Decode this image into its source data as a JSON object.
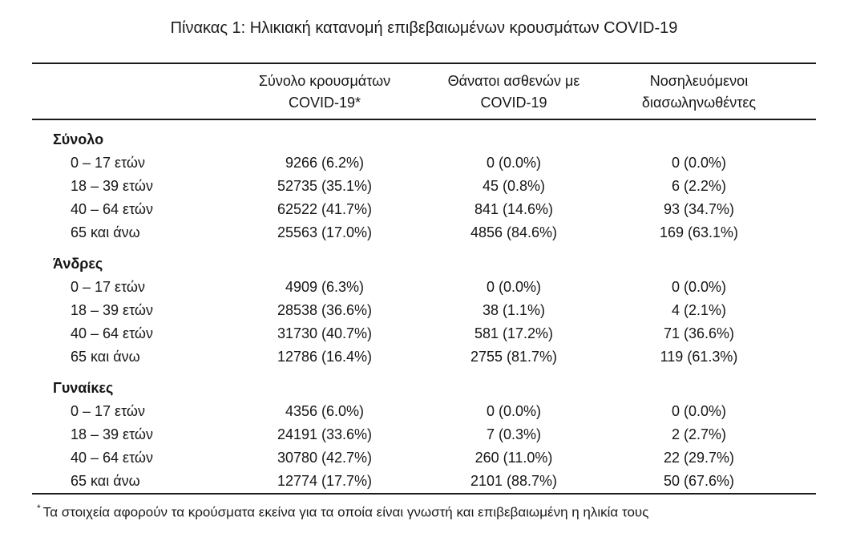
{
  "title": "Πίνακας 1: Ηλικιακή κατανομή επιβεβαιωμένων κρουσμάτων COVID-19",
  "table": {
    "columns": [
      {
        "line1": "Σύνολο κρουσμάτων",
        "line2": "COVID-19*"
      },
      {
        "line1": "Θάνατοι ασθενών με",
        "line2": "COVID-19"
      },
      {
        "line1": "Νοσηλευόμενοι",
        "line2": "διασωληνωθέντες"
      }
    ],
    "sections": [
      {
        "label": "Σύνολο",
        "rows": [
          {
            "label": "0 – 17 ετών",
            "cases": "9266 (6.2%)",
            "deaths": "0 (0.0%)",
            "intubated": "0 (0.0%)"
          },
          {
            "label": "18 – 39 ετών",
            "cases": "52735 (35.1%)",
            "deaths": "45 (0.8%)",
            "intubated": "6 (2.2%)"
          },
          {
            "label": "40 – 64 ετών",
            "cases": "62522 (41.7%)",
            "deaths": "841 (14.6%)",
            "intubated": "93 (34.7%)"
          },
          {
            "label": "65 και άνω",
            "cases": "25563 (17.0%)",
            "deaths": "4856 (84.6%)",
            "intubated": "169 (63.1%)"
          }
        ]
      },
      {
        "label": "Άνδρες",
        "rows": [
          {
            "label": "0 – 17 ετών",
            "cases": "4909 (6.3%)",
            "deaths": "0 (0.0%)",
            "intubated": "0 (0.0%)"
          },
          {
            "label": "18 – 39 ετών",
            "cases": "28538 (36.6%)",
            "deaths": "38 (1.1%)",
            "intubated": "4 (2.1%)"
          },
          {
            "label": "40 – 64 ετών",
            "cases": "31730 (40.7%)",
            "deaths": "581 (17.2%)",
            "intubated": "71 (36.6%)"
          },
          {
            "label": "65 και άνω",
            "cases": "12786 (16.4%)",
            "deaths": "2755 (81.7%)",
            "intubated": "119 (61.3%)"
          }
        ]
      },
      {
        "label": "Γυναίκες",
        "rows": [
          {
            "label": "0 – 17 ετών",
            "cases": "4356 (6.0%)",
            "deaths": "0 (0.0%)",
            "intubated": "0 (0.0%)"
          },
          {
            "label": "18 – 39 ετών",
            "cases": "24191 (33.6%)",
            "deaths": "7 (0.3%)",
            "intubated": "2 (2.7%)"
          },
          {
            "label": "40 – 64 ετών",
            "cases": "30780 (42.7%)",
            "deaths": "260 (11.0%)",
            "intubated": "22 (29.7%)"
          },
          {
            "label": "65 και άνω",
            "cases": "12774 (17.7%)",
            "deaths": "2101 (88.7%)",
            "intubated": "50 (67.6%)"
          }
        ]
      }
    ],
    "footnote_marker": "*",
    "footnote": "Τα στοιχεία αφορούν τα κρούσματα εκείνα για τα οποία είναι γνωστή και επιβεβαιωμένη η ηλικία τους"
  }
}
